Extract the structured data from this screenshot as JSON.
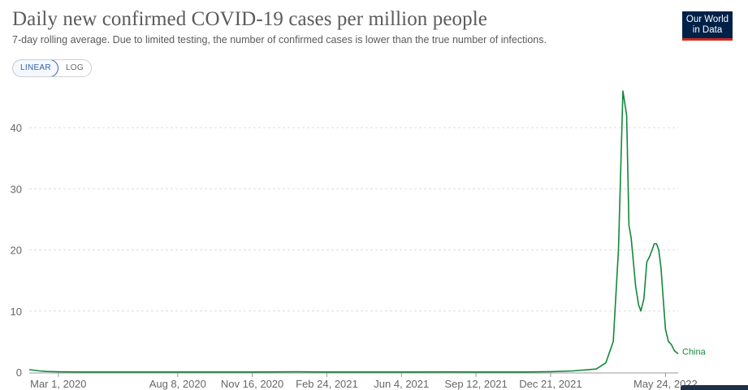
{
  "header": {
    "title": "Daily new confirmed COVID-19 cases per million people",
    "subtitle": "7-day rolling average. Due to limited testing, the number of confirmed cases is lower than the true number of infections.",
    "logo_line1": "Our World",
    "logo_line2": "in Data",
    "logo_bg": "#002147",
    "logo_accent": "#ce261e"
  },
  "scale_toggle": {
    "linear_label": "LINEAR",
    "log_label": "LOG",
    "selected": "LINEAR"
  },
  "chart_data": {
    "type": "line",
    "title": "Daily new confirmed COVID-19 cases per million people",
    "ylim": [
      0,
      46
    ],
    "yticks": [
      0,
      10,
      20,
      30,
      40
    ],
    "y_scale": "linear",
    "grid": "horizontal dashed",
    "xticks": [
      "Mar 1, 2020",
      "Aug 8, 2020",
      "Nov 16, 2020",
      "Feb 24, 2021",
      "Jun 4, 2021",
      "Sep 12, 2021",
      "Dec 21, 2021",
      "May 24, 2022"
    ],
    "xlim": [
      "2020-01-22",
      "2022-06-10"
    ],
    "series": [
      {
        "name": "China",
        "color": "#13883a",
        "x": [
          "2020-01-22",
          "2020-02-05",
          "2020-02-15",
          "2020-03-01",
          "2020-04-01",
          "2020-06-01",
          "2020-08-08",
          "2020-10-01",
          "2020-11-16",
          "2021-01-15",
          "2021-02-24",
          "2021-04-01",
          "2021-06-04",
          "2021-08-10",
          "2021-09-12",
          "2021-11-15",
          "2021-12-21",
          "2022-01-20",
          "2022-02-20",
          "2022-03-05",
          "2022-03-15",
          "2022-03-22",
          "2022-03-28",
          "2022-04-02",
          "2022-04-05",
          "2022-04-08",
          "2022-04-11",
          "2022-04-14",
          "2022-04-18",
          "2022-04-21",
          "2022-04-25",
          "2022-04-29",
          "2022-05-03",
          "2022-05-06",
          "2022-05-09",
          "2022-05-12",
          "2022-05-15",
          "2022-05-18",
          "2022-05-21",
          "2022-05-24",
          "2022-05-28",
          "2022-06-01",
          "2022-06-05",
          "2022-06-10"
        ],
        "y": [
          0.4,
          0.2,
          0.1,
          0.05,
          0.03,
          0.02,
          0.03,
          0.02,
          0.03,
          0.05,
          0.03,
          0.02,
          0.02,
          0.04,
          0.03,
          0.03,
          0.08,
          0.2,
          0.5,
          1.5,
          5,
          20,
          46,
          42,
          24,
          22,
          18,
          14,
          11,
          10,
          12,
          18,
          19,
          20,
          21,
          21,
          20,
          17,
          12,
          7,
          5,
          4.5,
          3.5,
          3
        ]
      }
    ]
  }
}
